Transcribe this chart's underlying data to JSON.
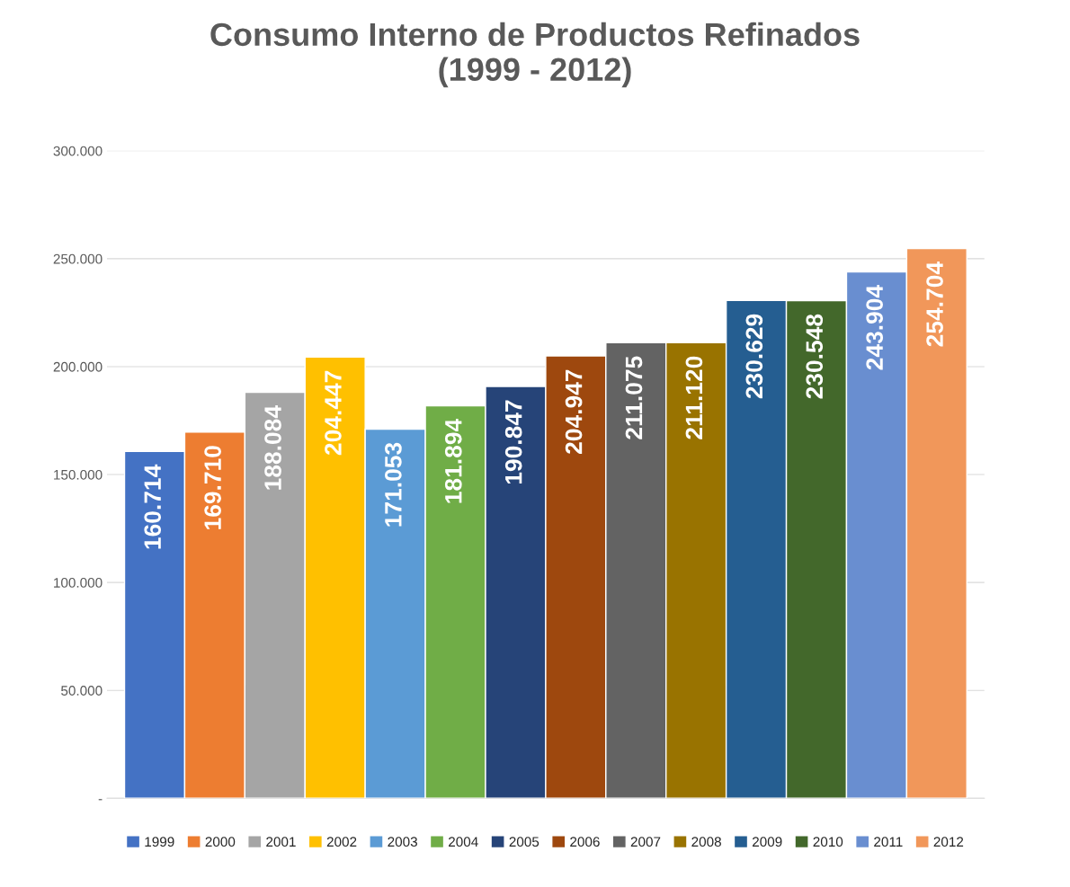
{
  "chart_data": {
    "type": "bar",
    "title": "Consumo Interno de Productos Refinados\n(1999 - 2012)",
    "categories": [
      null
    ],
    "series": [
      {
        "name": "1999",
        "color": "#4472c4",
        "values": [
          160714
        ],
        "value_labels": [
          "160.714"
        ]
      },
      {
        "name": "2000",
        "color": "#ed7d31",
        "values": [
          169710
        ],
        "value_labels": [
          "169.710"
        ]
      },
      {
        "name": "2001",
        "color": "#a5a5a5",
        "values": [
          188084
        ],
        "value_labels": [
          "188.084"
        ]
      },
      {
        "name": "2002",
        "color": "#ffc000",
        "values": [
          204447
        ],
        "value_labels": [
          "204.447"
        ]
      },
      {
        "name": "2003",
        "color": "#5b9bd5",
        "values": [
          171053
        ],
        "value_labels": [
          "171.053"
        ]
      },
      {
        "name": "2004",
        "color": "#70ad47",
        "values": [
          181894
        ],
        "value_labels": [
          "181.894"
        ]
      },
      {
        "name": "2005",
        "color": "#264478",
        "values": [
          190847
        ],
        "value_labels": [
          "190.847"
        ]
      },
      {
        "name": "2006",
        "color": "#9e480e",
        "values": [
          204947
        ],
        "value_labels": [
          "204.947"
        ]
      },
      {
        "name": "2007",
        "color": "#636363",
        "values": [
          211075
        ],
        "value_labels": [
          "211.075"
        ]
      },
      {
        "name": "2008",
        "color": "#997300",
        "values": [
          211120
        ],
        "value_labels": [
          "211.120"
        ]
      },
      {
        "name": "2009",
        "color": "#255e91",
        "values": [
          230629
        ],
        "value_labels": [
          "230.629"
        ]
      },
      {
        "name": "2010",
        "color": "#43682b",
        "values": [
          230548
        ],
        "value_labels": [
          "230.548"
        ]
      },
      {
        "name": "2011",
        "color": "#698ed0",
        "values": [
          243904
        ],
        "value_labels": [
          "243.904"
        ]
      },
      {
        "name": "2012",
        "color": "#f1975a",
        "values": [
          254704
        ],
        "value_labels": [
          "254.704"
        ]
      }
    ],
    "ylim": [
      0,
      300000
    ],
    "yticks": [
      {
        "value": 0,
        "label": "-"
      },
      {
        "value": 50000,
        "label": "50.000"
      },
      {
        "value": 100000,
        "label": "100.000"
      },
      {
        "value": 150000,
        "label": "150.000"
      },
      {
        "value": 200000,
        "label": "200.000"
      },
      {
        "value": 250000,
        "label": "250.000"
      },
      {
        "value": 300000,
        "label": "300.000"
      }
    ],
    "grid": "y",
    "legend": "bottom",
    "tick_labels": "y"
  }
}
